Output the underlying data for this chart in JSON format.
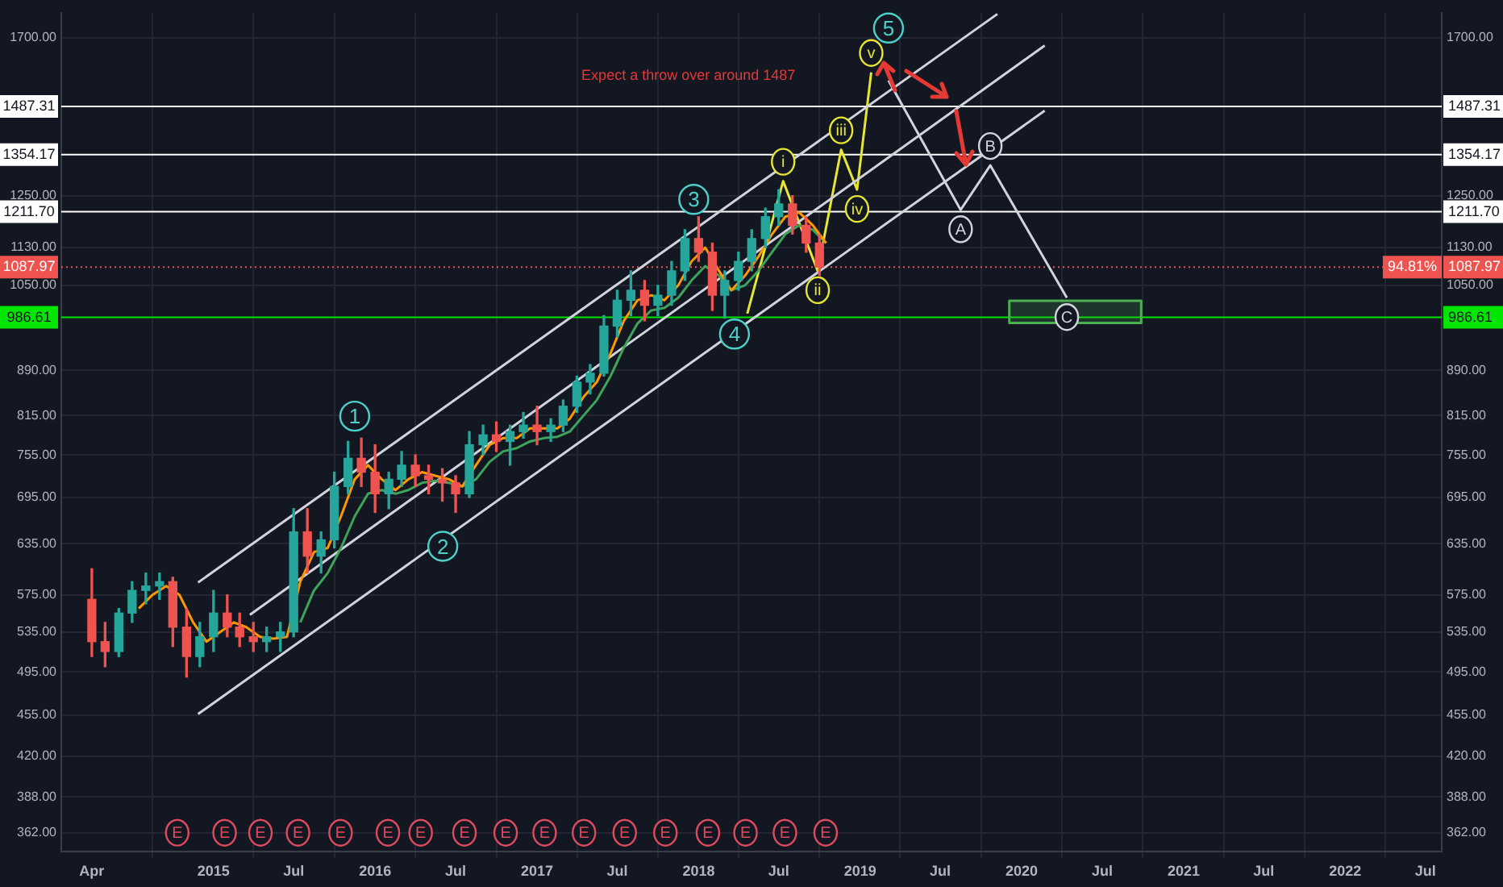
{
  "chart_data": {
    "type": "candlestick",
    "x": [
      "2014-04",
      "2014-05",
      "2014-06",
      "2014-07",
      "2014-08",
      "2014-09",
      "2014-10",
      "2014-11",
      "2014-12",
      "2015-01",
      "2015-02",
      "2015-03",
      "2015-04",
      "2015-05",
      "2015-06",
      "2015-07",
      "2015-08",
      "2015-09",
      "2015-10",
      "2015-11",
      "2015-12",
      "2016-01",
      "2016-02",
      "2016-03",
      "2016-04",
      "2016-05",
      "2016-06",
      "2016-07",
      "2016-08",
      "2016-09",
      "2016-10",
      "2016-11",
      "2016-12",
      "2017-01",
      "2017-02",
      "2017-03",
      "2017-04",
      "2017-05",
      "2017-06",
      "2017-07",
      "2017-08",
      "2017-09",
      "2017-10",
      "2017-11",
      "2017-12",
      "2018-01",
      "2018-02",
      "2018-03",
      "2018-04",
      "2018-05",
      "2018-06",
      "2018-07",
      "2018-08",
      "2018-09",
      "2018-10"
    ],
    "ohlc": [
      [
        570,
        605,
        510,
        525
      ],
      [
        525,
        545,
        500,
        515
      ],
      [
        515,
        560,
        510,
        555
      ],
      [
        555,
        590,
        545,
        580
      ],
      [
        580,
        600,
        565,
        585
      ],
      [
        585,
        600,
        570,
        590
      ],
      [
        590,
        595,
        520,
        540
      ],
      [
        540,
        560,
        490,
        510
      ],
      [
        510,
        545,
        500,
        530
      ],
      [
        530,
        580,
        515,
        555
      ],
      [
        555,
        575,
        530,
        540
      ],
      [
        540,
        555,
        520,
        530
      ],
      [
        530,
        545,
        515,
        525
      ],
      [
        525,
        540,
        515,
        530
      ],
      [
        530,
        545,
        515,
        535
      ],
      [
        535,
        680,
        530,
        650
      ],
      [
        650,
        680,
        600,
        620
      ],
      [
        620,
        650,
        600,
        640
      ],
      [
        640,
        730,
        630,
        710
      ],
      [
        710,
        775,
        700,
        750
      ],
      [
        750,
        780,
        710,
        730
      ],
      [
        730,
        770,
        675,
        700
      ],
      [
        700,
        730,
        680,
        720
      ],
      [
        720,
        760,
        710,
        740
      ],
      [
        740,
        755,
        710,
        725
      ],
      [
        725,
        740,
        700,
        720
      ],
      [
        720,
        735,
        690,
        715
      ],
      [
        715,
        725,
        675,
        700
      ],
      [
        700,
        790,
        695,
        770
      ],
      [
        770,
        800,
        755,
        785
      ],
      [
        785,
        805,
        760,
        775
      ],
      [
        775,
        800,
        740,
        790
      ],
      [
        790,
        820,
        780,
        800
      ],
      [
        800,
        830,
        770,
        790
      ],
      [
        790,
        810,
        775,
        800
      ],
      [
        800,
        840,
        790,
        830
      ],
      [
        830,
        880,
        820,
        870
      ],
      [
        870,
        900,
        850,
        885
      ],
      [
        885,
        990,
        880,
        970
      ],
      [
        970,
        1040,
        950,
        1020
      ],
      [
        1020,
        1080,
        990,
        1040
      ],
      [
        1040,
        1060,
        980,
        1010
      ],
      [
        1010,
        1050,
        990,
        1030
      ],
      [
        1030,
        1100,
        1010,
        1080
      ],
      [
        1080,
        1170,
        1060,
        1150
      ],
      [
        1150,
        1200,
        1100,
        1120
      ],
      [
        1120,
        1140,
        1000,
        1030
      ],
      [
        1030,
        1080,
        985,
        1060
      ],
      [
        1060,
        1120,
        1040,
        1100
      ],
      [
        1100,
        1170,
        1080,
        1150
      ],
      [
        1150,
        1220,
        1130,
        1200
      ],
      [
        1200,
        1265,
        1180,
        1230
      ],
      [
        1230,
        1250,
        1160,
        1180
      ],
      [
        1180,
        1200,
        1120,
        1140
      ],
      [
        1140,
        1160,
        1070,
        1088
      ]
    ],
    "series": [
      {
        "type": "line",
        "color": "#ff9800",
        "x": [
          "2014-07-16",
          "2014-08-16",
          "2014-09-16",
          "2014-10-16",
          "2014-11-16",
          "2014-12-16",
          "2015-01-16",
          "2015-02-16",
          "2015-03-16",
          "2015-04-16",
          "2015-05-16",
          "2015-06-16",
          "2015-07-16",
          "2015-08-16",
          "2015-09-16",
          "2015-10-16",
          "2015-11-16",
          "2015-12-16",
          "2016-01-16",
          "2016-02-16",
          "2016-03-16",
          "2016-04-16",
          "2016-05-16",
          "2016-06-16",
          "2016-07-16",
          "2016-08-16",
          "2016-09-16",
          "2016-10-16",
          "2016-11-16",
          "2016-12-16",
          "2017-01-16",
          "2017-02-16",
          "2017-03-16",
          "2017-04-16",
          "2017-05-16",
          "2017-06-16",
          "2017-07-16",
          "2017-08-16",
          "2017-09-16",
          "2017-10-16",
          "2017-11-16",
          "2017-12-16",
          "2018-01-16",
          "2018-02-16",
          "2018-03-16",
          "2018-04-16",
          "2018-05-16",
          "2018-06-16",
          "2018-07-16",
          "2018-08-16",
          "2018-09-16",
          "2018-10-16"
        ],
        "values": [
          560,
          575,
          585,
          575,
          545,
          525,
          535,
          545,
          540,
          530,
          528,
          530,
          590,
          625,
          630,
          670,
          720,
          740,
          720,
          705,
          720,
          730,
          725,
          720,
          710,
          740,
          770,
          780,
          780,
          795,
          795,
          795,
          810,
          845,
          870,
          920,
          980,
          1020,
          1030,
          1020,
          1050,
          1100,
          1130,
          1080,
          1040,
          1070,
          1110,
          1160,
          1200,
          1210,
          1180,
          1140
        ]
      },
      {
        "type": "line",
        "color": "#3fa45b",
        "x": [
          "2015-07-16",
          "2015-08-16",
          "2015-09-16",
          "2015-10-16",
          "2015-11-16",
          "2015-12-16",
          "2016-01-16",
          "2016-02-16",
          "2016-03-16",
          "2016-04-16",
          "2016-05-16",
          "2016-06-16",
          "2016-07-16",
          "2016-08-16",
          "2016-09-16",
          "2016-10-16",
          "2016-11-16",
          "2016-12-16",
          "2017-01-16",
          "2017-02-16",
          "2017-03-16",
          "2017-04-16",
          "2017-05-16",
          "2017-06-16",
          "2017-07-16",
          "2017-08-16",
          "2017-09-16",
          "2017-10-16",
          "2017-11-16",
          "2017-12-16",
          "2018-01-16",
          "2018-02-16",
          "2018-03-16",
          "2018-04-16",
          "2018-05-16",
          "2018-06-16",
          "2018-07-16",
          "2018-08-16",
          "2018-09-16",
          "2018-10-16"
        ],
        "values": [
          545,
          580,
          600,
          630,
          670,
          700,
          705,
          700,
          705,
          715,
          718,
          715,
          710,
          720,
          745,
          760,
          765,
          775,
          780,
          782,
          790,
          815,
          840,
          880,
          930,
          975,
          1000,
          1005,
          1025,
          1060,
          1090,
          1070,
          1040,
          1050,
          1080,
          1120,
          1160,
          1180,
          1170,
          1140
        ]
      },
      {
        "type": "line",
        "color": "#d1d4dc",
        "x": [
          "2014-11-27",
          "2019-11-07"
        ],
        "values": [
          589,
          1780
        ]
      },
      {
        "type": "line",
        "color": "#d1d4dc",
        "x": [
          "2015-03-24",
          "2020-02-22"
        ],
        "values": [
          553,
          1674
        ]
      },
      {
        "type": "line",
        "color": "#d1d4dc",
        "x": [
          "2014-11-27",
          "2020-02-22"
        ],
        "values": [
          456,
          1475
        ]
      },
      {
        "type": "line",
        "color": "#e6e633",
        "x": [
          "2018-04-21",
          "2018-07-11",
          "2018-09-27",
          "2018-11-19",
          "2018-12-25",
          "2019-01-26"
        ],
        "values": [
          994,
          1286,
          1080,
          1367,
          1265,
          1589
        ],
        "value_labels": [
          null,
          "i",
          "ii",
          "iii",
          "iv",
          "v"
        ]
      },
      {
        "type": "line",
        "color": "#d1d4dc",
        "x": [
          "2019-03-06",
          "2019-08-16",
          "2019-10-22",
          "2020-04-12"
        ],
        "values": [
          1564,
          1216,
          1326,
          1025
        ],
        "value_labels": [
          null,
          "A",
          "B",
          "C"
        ]
      },
      {
        "type": "area",
        "color": "#4caf50",
        "x": [
          "2019-12-04",
          "2020-09-27",
          "2020-09-27",
          "2019-12-04",
          "2019-12-04"
        ],
        "values": [
          976,
          976,
          1019,
          1019,
          976
        ]
      }
    ],
    "xlim": [
      "2014-01-22",
      "2022-08-07"
    ],
    "xticks": [
      {
        "value": "2014-04",
        "label": "Apr"
      },
      {
        "value": "2015",
        "label": "2015"
      },
      {
        "value": "2015-07",
        "label": "Jul"
      },
      {
        "value": "2016",
        "label": "2016"
      },
      {
        "value": "2016-07",
        "label": "Jul"
      },
      {
        "value": "2017",
        "label": "2017"
      },
      {
        "value": "2017-07",
        "label": "Jul"
      },
      {
        "value": "2018",
        "label": "2018"
      },
      {
        "value": "2018-07",
        "label": "Jul"
      },
      {
        "value": "2019",
        "label": "2019"
      },
      {
        "value": "2019-07",
        "label": "Jul"
      },
      {
        "value": "2020",
        "label": "2020"
      },
      {
        "value": "2020-07",
        "label": "Jul"
      },
      {
        "value": "2021",
        "label": "2021"
      },
      {
        "value": "2021-07",
        "label": "Jul"
      },
      {
        "value": "2022",
        "label": "2022"
      },
      {
        "value": "2022-07",
        "label": "Jul"
      }
    ],
    "ylim": [
      349,
      1785
    ],
    "yticks": [
      {
        "value": 362,
        "label": "362.00"
      },
      {
        "value": 388,
        "label": "388.00"
      },
      {
        "value": 420,
        "label": "420.00"
      },
      {
        "value": 455,
        "label": "455.00"
      },
      {
        "value": 495,
        "label": "495.00"
      },
      {
        "value": 535,
        "label": "535.00"
      },
      {
        "value": 575,
        "label": "575.00"
      },
      {
        "value": 635,
        "label": "635.00"
      },
      {
        "value": 695,
        "label": "695.00"
      },
      {
        "value": 755,
        "label": "755.00"
      },
      {
        "value": 815,
        "label": "815.00"
      },
      {
        "value": 890,
        "label": "890.00"
      },
      {
        "value": 1050,
        "label": "1050.00"
      },
      {
        "value": 1130,
        "label": "1130.00"
      },
      {
        "value": 1250,
        "label": "1250.00"
      },
      {
        "value": 1700,
        "label": "1700.00"
      }
    ],
    "log": "y",
    "grid": true,
    "ref_lines": [
      {
        "axis": "y",
        "value": 1487.31,
        "label": "1487.31",
        "color": "#ffffff"
      },
      {
        "axis": "y",
        "value": 1354.17,
        "label": "1354.17",
        "color": "#ffffff"
      },
      {
        "axis": "y",
        "value": 1211.7,
        "label": "1211.70",
        "color": "#ffffff"
      },
      {
        "axis": "y",
        "value": 1087.97,
        "label": "1087.97",
        "color": "#ef5350",
        "line_style": "dotted"
      },
      {
        "axis": "y",
        "value": 986.61,
        "label": "986.61",
        "color": "#00e600"
      }
    ],
    "annotations": [
      "Expect a throw over around 1487",
      {
        "text": "94.81%",
        "x": "2022-05-01",
        "y": 1087.97
      },
      {
        "text": "1",
        "x": "2015-11-16",
        "y": 814
      },
      {
        "text": "2",
        "x": "2016-06-02",
        "y": 632
      },
      {
        "text": "3",
        "x": "2017-12-21",
        "y": 1241
      },
      {
        "text": "4",
        "x": "2018-03-23",
        "y": 955
      },
      {
        "text": "5",
        "x": "2019-03-06",
        "y": 1732
      },
      {
        "text": "E",
        "x": "2014-10-11",
        "y": 362
      },
      {
        "text": "E",
        "x": "2015-01-26",
        "y": 362
      },
      {
        "text": "E",
        "x": "2015-04-17",
        "y": 362
      },
      {
        "text": "E",
        "x": "2015-07-11",
        "y": 362
      },
      {
        "text": "E",
        "x": "2015-10-15",
        "y": 362
      },
      {
        "text": "E",
        "x": "2016-01-30",
        "y": 362
      },
      {
        "text": "E",
        "x": "2016-04-13",
        "y": 362
      },
      {
        "text": "E",
        "x": "2016-07-21",
        "y": 362
      },
      {
        "text": "E",
        "x": "2016-10-22",
        "y": 362
      },
      {
        "text": "E",
        "x": "2017-01-18",
        "y": 362
      },
      {
        "text": "E",
        "x": "2017-04-17",
        "y": 362
      },
      {
        "text": "E",
        "x": "2017-07-18",
        "y": 362
      },
      {
        "text": "E",
        "x": "2017-10-18",
        "y": 362
      },
      {
        "text": "E",
        "x": "2018-01-22",
        "y": 362
      },
      {
        "text": "E",
        "x": "2018-04-17",
        "y": 362
      },
      {
        "text": "E",
        "x": "2018-07-15",
        "y": 362
      },
      {
        "text": "E",
        "x": "2018-10-15",
        "y": 362
      }
    ]
  }
}
